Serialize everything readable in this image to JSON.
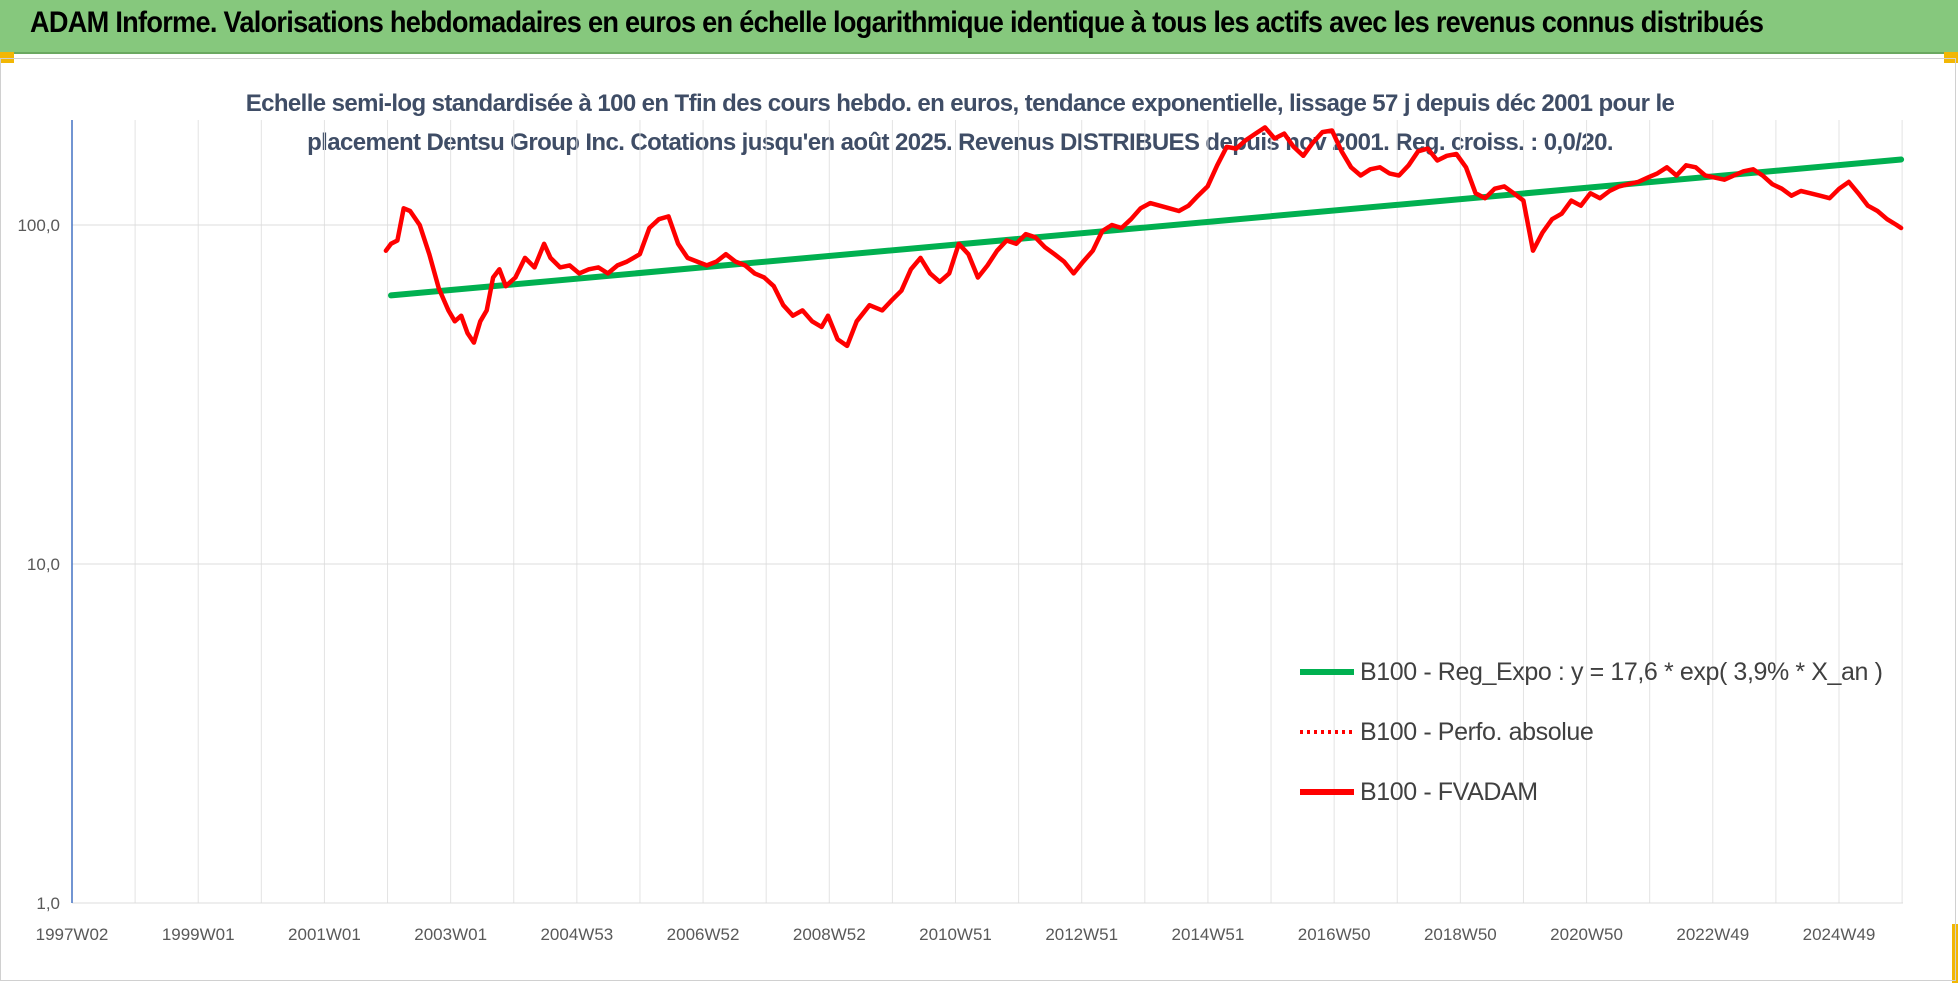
{
  "header": {
    "title": "ADAM Informe. Valorisations hebdomadaires en euros en échelle logarithmique identique à tous les actifs avec les revenus connus distribués"
  },
  "chart_data": {
    "type": "line",
    "title_line1": "Echelle semi-log standardisée à 100 en Tfin des cours hebdo. en euros, tendance exponentielle, lissage 57 j depuis déc 2001 pour le",
    "title_line2": "placement Dentsu Group Inc. Cotations jusqu'en août 2025. Revenus DISTRIBUES depuis nov 2001. Reg. croiss. : 0,0/20.",
    "y_scale": "log",
    "ylim": [
      1,
      200
    ],
    "y_ticks": [
      "1,0",
      "10,0",
      "100,0"
    ],
    "x_tick_labels": [
      "1997W02",
      "1999W01",
      "2001W01",
      "2003W01",
      "2004W53",
      "2006W52",
      "2008W52",
      "2010W51",
      "2012W51",
      "2014W51",
      "2016W50",
      "2018W50",
      "2020W50",
      "2022W49",
      "2024W49"
    ],
    "xlim": [
      1997.0,
      2025.7
    ],
    "grid": true,
    "legend_position": "lower-right",
    "series": [
      {
        "name": "B100 - Reg_Expo : y = 17,6 * exp( 3,9% *  X_an )",
        "color": "#00b050",
        "style": "solid",
        "x": [
          2002.0,
          2025.67
        ],
        "y": [
          62,
          156
        ]
      },
      {
        "name": "B100 - Perfo. absolue",
        "color": "#ff0000",
        "style": "dotted",
        "x": [],
        "y": []
      },
      {
        "name": "B100 - FVADAM",
        "color": "#ff0000",
        "style": "solid",
        "x": [
          2001.92,
          2002.0,
          2002.1,
          2002.2,
          2002.3,
          2002.45,
          2002.6,
          2002.75,
          2002.9,
          2003.0,
          2003.1,
          2003.2,
          2003.3,
          2003.4,
          2003.5,
          2003.6,
          2003.7,
          2003.8,
          2003.95,
          2004.1,
          2004.25,
          2004.4,
          2004.5,
          2004.65,
          2004.8,
          2004.95,
          2005.1,
          2005.25,
          2005.4,
          2005.55,
          2005.7,
          2005.8,
          2005.9,
          2006.05,
          2006.2,
          2006.35,
          2006.5,
          2006.65,
          2006.8,
          2006.95,
          2007.1,
          2007.25,
          2007.4,
          2007.55,
          2007.7,
          2007.85,
          2008.0,
          2008.15,
          2008.3,
          2008.45,
          2008.6,
          2008.75,
          2008.85,
          2009.0,
          2009.15,
          2009.3,
          2009.5,
          2009.7,
          2009.85,
          2010.0,
          2010.15,
          2010.3,
          2010.45,
          2010.6,
          2010.75,
          2010.9,
          2011.05,
          2011.2,
          2011.35,
          2011.5,
          2011.65,
          2011.8,
          2011.95,
          2012.1,
          2012.25,
          2012.4,
          2012.55,
          2012.7,
          2012.85,
          2013.0,
          2013.15,
          2013.3,
          2013.45,
          2013.6,
          2013.75,
          2013.9,
          2014.05,
          2014.2,
          2014.35,
          2014.5,
          2014.65,
          2014.8,
          2014.95,
          2015.1,
          2015.25,
          2015.4,
          2015.55,
          2015.7,
          2015.85,
          2016.0,
          2016.15,
          2016.3,
          2016.45,
          2016.6,
          2016.75,
          2016.9,
          2017.05,
          2017.2,
          2017.35,
          2017.5,
          2017.65,
          2017.8,
          2017.95,
          2018.1,
          2018.25,
          2018.4,
          2018.55,
          2018.7,
          2018.85,
          2019.0,
          2019.15,
          2019.3,
          2019.45,
          2019.6,
          2019.75,
          2019.9,
          2020.05,
          2020.2,
          2020.35,
          2020.5,
          2020.65,
          2020.8,
          2020.95,
          2021.1,
          2021.25,
          2021.4,
          2021.55,
          2021.7,
          2021.85,
          2022.0,
          2022.15,
          2022.3,
          2022.45,
          2022.6,
          2022.75,
          2022.9,
          2023.05,
          2023.2,
          2023.35,
          2023.5,
          2023.65,
          2023.8,
          2023.95,
          2024.1,
          2024.25,
          2024.4,
          2024.55,
          2024.7,
          2024.85,
          2025.0,
          2025.15,
          2025.3,
          2025.45,
          2025.6,
          2025.67
        ],
        "y": [
          84,
          88,
          90,
          112,
          110,
          100,
          82,
          65,
          56,
          52,
          54,
          48,
          45,
          52,
          56,
          70,
          74,
          66,
          70,
          80,
          75,
          88,
          80,
          75,
          76,
          72,
          74,
          75,
          72,
          76,
          78,
          80,
          82,
          98,
          104,
          106,
          88,
          80,
          78,
          76,
          78,
          82,
          78,
          76,
          72,
          70,
          66,
          58,
          54,
          56,
          52,
          50,
          54,
          46,
          44,
          52,
          58,
          56,
          60,
          64,
          74,
          80,
          72,
          68,
          72,
          88,
          82,
          70,
          76,
          84,
          90,
          88,
          94,
          92,
          86,
          82,
          78,
          72,
          78,
          84,
          96,
          100,
          98,
          104,
          112,
          116,
          114,
          112,
          110,
          114,
          122,
          130,
          150,
          170,
          168,
          178,
          186,
          194,
          180,
          186,
          170,
          160,
          175,
          188,
          190,
          165,
          148,
          140,
          146,
          148,
          142,
          140,
          150,
          165,
          168,
          155,
          160,
          162,
          148,
          124,
          120,
          128,
          130,
          124,
          118,
          84,
          95,
          104,
          108,
          118,
          114,
          124,
          120,
          126,
          130,
          132,
          134,
          138,
          142,
          148,
          140,
          150,
          148,
          140,
          138,
          136,
          140,
          144,
          146,
          140,
          132,
          128,
          122,
          126,
          124,
          122,
          120,
          128,
          134,
          124,
          114,
          110,
          104,
          100,
          98
        ]
      }
    ]
  }
}
